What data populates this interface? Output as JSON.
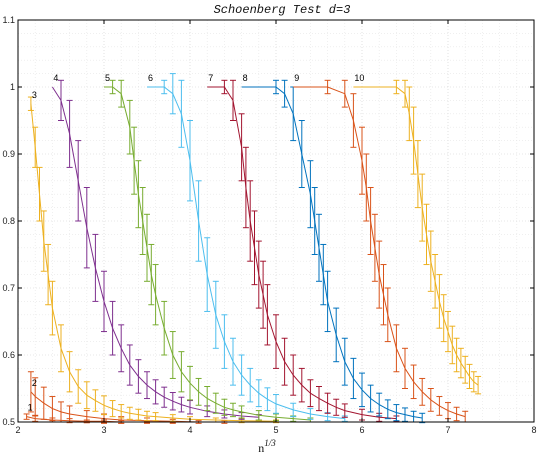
{
  "chart_data": {
    "type": "line",
    "title": "Schoenberg Test d=3",
    "xlabel": "n",
    "xlabel_exponent": "1/3",
    "ylabel": "",
    "xlim": [
      2,
      8
    ],
    "ylim": [
      0.5,
      1.1
    ],
    "xticks": [
      "2",
      "3",
      "4",
      "5",
      "6",
      "7",
      "8"
    ],
    "yticks": [
      "0.5",
      "0.6",
      "0.7",
      "0.8",
      "0.9",
      "1",
      "1.1"
    ],
    "grid": true,
    "series": [
      {
        "name": "1",
        "color": "#d95319",
        "x": [
          2.1,
          2.2,
          2.4,
          2.6,
          2.8,
          3.0,
          3.2,
          3.5,
          3.8
        ],
        "y": [
          0.508,
          0.505,
          0.503,
          0.502,
          0.501,
          0.501,
          0.5,
          0.5,
          0.5
        ],
        "err": [
          0.004,
          0.004,
          0.003,
          0.003,
          0.002,
          0.002,
          0.002,
          0.001,
          0.001
        ]
      },
      {
        "name": "2",
        "color": "#d95319",
        "x": [
          2.15,
          2.2,
          2.3,
          2.4,
          2.5,
          2.6,
          2.8,
          3.0,
          3.2,
          3.5,
          3.8,
          4.1,
          4.4
        ],
        "y": [
          0.545,
          0.538,
          0.528,
          0.52,
          0.515,
          0.512,
          0.508,
          0.505,
          0.503,
          0.502,
          0.501,
          0.5,
          0.5
        ],
        "err": [
          0.03,
          0.028,
          0.024,
          0.018,
          0.015,
          0.012,
          0.009,
          0.007,
          0.005,
          0.004,
          0.003,
          0.002,
          0.002
        ]
      },
      {
        "name": "3",
        "color": "#edb120",
        "x": [
          2.15,
          2.2,
          2.25,
          2.3,
          2.35,
          2.4,
          2.5,
          2.6,
          2.7,
          2.8,
          2.9,
          3.0,
          3.1,
          3.2,
          3.3,
          3.4,
          3.5,
          3.6,
          3.8,
          4.0,
          4.3,
          4.6,
          5.0
        ],
        "y": [
          0.975,
          0.91,
          0.84,
          0.77,
          0.72,
          0.67,
          0.61,
          0.575,
          0.553,
          0.54,
          0.532,
          0.525,
          0.52,
          0.516,
          0.513,
          0.511,
          0.509,
          0.508,
          0.506,
          0.504,
          0.503,
          0.502,
          0.501
        ],
        "err": [
          0.01,
          0.03,
          0.04,
          0.045,
          0.045,
          0.04,
          0.035,
          0.03,
          0.025,
          0.02,
          0.016,
          0.014,
          0.012,
          0.01,
          0.009,
          0.008,
          0.007,
          0.006,
          0.005,
          0.004,
          0.003,
          0.003,
          0.002
        ]
      },
      {
        "name": "4",
        "color": "#7e2f8e",
        "x": [
          2.4,
          2.5,
          2.6,
          2.7,
          2.8,
          2.9,
          3.0,
          3.1,
          3.2,
          3.3,
          3.4,
          3.5,
          3.6,
          3.7,
          3.8,
          3.9,
          4.0,
          4.2,
          4.4,
          4.6,
          4.8
        ],
        "y": [
          1.0,
          0.98,
          0.93,
          0.86,
          0.79,
          0.73,
          0.68,
          0.64,
          0.61,
          0.585,
          0.568,
          0.555,
          0.545,
          0.537,
          0.531,
          0.526,
          0.522,
          0.516,
          0.512,
          0.509,
          0.507
        ],
        "err": [
          0.0,
          0.03,
          0.05,
          0.06,
          0.06,
          0.05,
          0.045,
          0.04,
          0.035,
          0.03,
          0.025,
          0.02,
          0.018,
          0.015,
          0.013,
          0.011,
          0.01,
          0.008,
          0.006,
          0.005,
          0.004
        ]
      },
      {
        "name": "5",
        "color": "#77ac30",
        "x": [
          3.0,
          3.1,
          3.2,
          3.3,
          3.35,
          3.4,
          3.45,
          3.5,
          3.55,
          3.6,
          3.7,
          3.8,
          3.9,
          4.0,
          4.1,
          4.2,
          4.3,
          4.4,
          4.5,
          4.6,
          4.8,
          5.0,
          5.2,
          5.4
        ],
        "y": [
          1.0,
          1.0,
          0.99,
          0.94,
          0.89,
          0.84,
          0.8,
          0.76,
          0.72,
          0.69,
          0.64,
          0.6,
          0.575,
          0.558,
          0.545,
          0.535,
          0.528,
          0.522,
          0.518,
          0.515,
          0.51,
          0.507,
          0.505,
          0.503
        ],
        "err": [
          0.0,
          0.01,
          0.02,
          0.04,
          0.05,
          0.05,
          0.05,
          0.05,
          0.045,
          0.045,
          0.04,
          0.035,
          0.03,
          0.025,
          0.02,
          0.018,
          0.015,
          0.012,
          0.01,
          0.009,
          0.007,
          0.005,
          0.004,
          0.003
        ]
      },
      {
        "name": "6",
        "color": "#4dbeee",
        "x": [
          3.5,
          3.7,
          3.8,
          3.9,
          4.0,
          4.1,
          4.2,
          4.3,
          4.4,
          4.5,
          4.6,
          4.7,
          4.8,
          4.9,
          5.0,
          5.2,
          5.4,
          5.6,
          5.8
        ],
        "y": [
          1.0,
          1.0,
          0.99,
          0.96,
          0.89,
          0.8,
          0.72,
          0.66,
          0.62,
          0.59,
          0.57,
          0.555,
          0.543,
          0.534,
          0.527,
          0.518,
          0.512,
          0.508,
          0.505
        ],
        "err": [
          0.0,
          0.01,
          0.03,
          0.05,
          0.06,
          0.06,
          0.055,
          0.05,
          0.04,
          0.035,
          0.03,
          0.025,
          0.02,
          0.017,
          0.014,
          0.01,
          0.008,
          0.006,
          0.004
        ]
      },
      {
        "name": "7",
        "color": "#a2142f",
        "x": [
          4.2,
          4.4,
          4.5,
          4.6,
          4.65,
          4.7,
          4.75,
          4.8,
          4.85,
          4.9,
          5.0,
          5.1,
          5.2,
          5.3,
          5.4,
          5.5,
          5.6,
          5.7,
          5.8,
          6.0,
          6.2,
          6.4
        ],
        "y": [
          1.0,
          1.0,
          0.98,
          0.91,
          0.85,
          0.8,
          0.76,
          0.72,
          0.69,
          0.66,
          0.62,
          0.59,
          0.57,
          0.555,
          0.543,
          0.535,
          0.528,
          0.522,
          0.517,
          0.511,
          0.507,
          0.505
        ],
        "err": [
          0.0,
          0.01,
          0.03,
          0.05,
          0.06,
          0.06,
          0.055,
          0.05,
          0.05,
          0.045,
          0.04,
          0.035,
          0.03,
          0.025,
          0.02,
          0.018,
          0.015,
          0.012,
          0.01,
          0.008,
          0.006,
          0.004
        ]
      },
      {
        "name": "8",
        "color": "#0072bd",
        "x": [
          4.6,
          5.0,
          5.1,
          5.2,
          5.3,
          5.4,
          5.45,
          5.5,
          5.55,
          5.6,
          5.7,
          5.8,
          5.9,
          6.0,
          6.1,
          6.2,
          6.3,
          6.4,
          6.5,
          6.6,
          6.7
        ],
        "y": [
          1.0,
          1.0,
          0.99,
          0.96,
          0.9,
          0.84,
          0.8,
          0.76,
          0.72,
          0.68,
          0.63,
          0.59,
          0.565,
          0.548,
          0.535,
          0.526,
          0.519,
          0.514,
          0.511,
          0.508,
          0.506
        ],
        "err": [
          0.0,
          0.01,
          0.02,
          0.04,
          0.05,
          0.05,
          0.05,
          0.05,
          0.045,
          0.045,
          0.04,
          0.035,
          0.03,
          0.025,
          0.02,
          0.017,
          0.014,
          0.012,
          0.01,
          0.008,
          0.007
        ]
      },
      {
        "name": "9",
        "color": "#d95319",
        "x": [
          5.2,
          5.6,
          5.8,
          5.9,
          6.0,
          6.05,
          6.1,
          6.15,
          6.2,
          6.25,
          6.3,
          6.4,
          6.5,
          6.6,
          6.7,
          6.8,
          6.9,
          7.0,
          7.1,
          7.2
        ],
        "y": [
          1.0,
          1.0,
          0.99,
          0.95,
          0.89,
          0.85,
          0.8,
          0.76,
          0.72,
          0.69,
          0.66,
          0.61,
          0.58,
          0.56,
          0.545,
          0.533,
          0.524,
          0.517,
          0.512,
          0.508
        ],
        "err": [
          0.0,
          0.01,
          0.02,
          0.04,
          0.05,
          0.05,
          0.05,
          0.05,
          0.05,
          0.045,
          0.04,
          0.035,
          0.03,
          0.025,
          0.02,
          0.017,
          0.014,
          0.012,
          0.01,
          0.008
        ]
      },
      {
        "name": "10",
        "color": "#edb120",
        "x": [
          5.9,
          6.4,
          6.5,
          6.55,
          6.6,
          6.65,
          6.7,
          6.75,
          6.8,
          6.85,
          6.9,
          6.95,
          7.0,
          7.05,
          7.1,
          7.15,
          7.2,
          7.25,
          7.3,
          7.35
        ],
        "y": [
          1.0,
          1.0,
          0.99,
          0.96,
          0.92,
          0.87,
          0.82,
          0.78,
          0.74,
          0.71,
          0.68,
          0.655,
          0.635,
          0.615,
          0.6,
          0.588,
          0.578,
          0.568,
          0.56,
          0.555
        ],
        "err": [
          0.0,
          0.01,
          0.02,
          0.04,
          0.05,
          0.05,
          0.05,
          0.045,
          0.045,
          0.04,
          0.04,
          0.035,
          0.03,
          0.028,
          0.025,
          0.022,
          0.02,
          0.018,
          0.015,
          0.013
        ]
      }
    ]
  }
}
